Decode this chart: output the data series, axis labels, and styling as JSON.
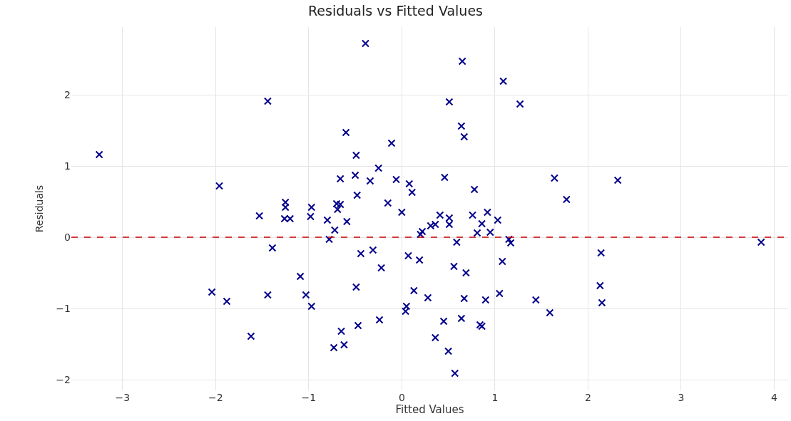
{
  "chart_data": {
    "type": "scatter",
    "title": "Residuals vs Fitted Values",
    "xlabel": "Fitted Values",
    "ylabel": "Residuals",
    "x": [
      -3.25,
      -1.44,
      -1.96,
      -1.53,
      -1.25,
      -1.25,
      -1.26,
      -1.2,
      -0.98,
      -0.97,
      -1.39,
      -1.09,
      -2.04,
      -1.88,
      -1.44,
      -1.03,
      -0.97,
      -1.62,
      -0.39,
      0.65,
      0.51,
      0.64,
      0.67,
      -0.6,
      -0.11,
      -0.49,
      -0.25,
      -0.66,
      -0.5,
      -0.34,
      -0.06,
      0.08,
      0.11,
      0.46,
      -0.48,
      -0.15,
      -0.7,
      -0.66,
      -0.69,
      -0.8,
      -0.59,
      -0.72,
      -0.78,
      0.0,
      0.41,
      0.36,
      0.31,
      0.51,
      0.51,
      0.22,
      0.2,
      0.59,
      -0.44,
      -0.31,
      0.07,
      0.19,
      -0.22,
      0.56,
      0.69,
      -0.49,
      0.13,
      0.28,
      0.67,
      0.05,
      0.04,
      -0.24,
      -0.47,
      -0.65,
      0.45,
      0.64,
      0.36,
      -0.73,
      -0.62,
      0.5,
      0.57,
      1.09,
      1.27,
      1.64,
      2.32,
      1.77,
      0.78,
      0.76,
      0.92,
      0.86,
      1.03,
      0.81,
      0.95,
      1.15,
      1.17,
      3.86,
      2.14,
      1.08,
      2.13,
      2.15,
      0.9,
      1.05,
      1.44,
      1.59,
      0.84,
      0.86
    ],
    "values": [
      1.16,
      1.91,
      0.72,
      0.3,
      0.49,
      0.42,
      0.26,
      0.26,
      0.29,
      0.42,
      -0.15,
      -0.55,
      -0.77,
      -0.9,
      -0.81,
      -0.81,
      -0.97,
      -1.39,
      2.72,
      2.47,
      1.9,
      1.56,
      1.41,
      1.47,
      1.32,
      1.15,
      0.97,
      0.82,
      0.87,
      0.79,
      0.81,
      0.75,
      0.63,
      0.84,
      0.59,
      0.48,
      0.47,
      0.46,
      0.39,
      0.24,
      0.22,
      0.1,
      -0.03,
      0.35,
      0.31,
      0.18,
      0.16,
      0.27,
      0.18,
      0.08,
      0.04,
      -0.07,
      -0.23,
      -0.18,
      -0.26,
      -0.32,
      -0.43,
      -0.41,
      -0.5,
      -0.7,
      -0.75,
      -0.85,
      -0.86,
      -0.97,
      -1.04,
      -1.16,
      -1.24,
      -1.32,
      -1.18,
      -1.14,
      -1.41,
      -1.55,
      -1.51,
      -1.6,
      -1.91,
      2.19,
      1.87,
      0.83,
      0.8,
      0.53,
      0.67,
      0.31,
      0.35,
      0.19,
      0.24,
      0.06,
      0.07,
      -0.03,
      -0.08,
      -0.07,
      -0.22,
      -0.34,
      -0.68,
      -0.92,
      -0.88,
      -0.79,
      -0.88,
      -1.06,
      -1.23,
      -1.25
    ],
    "color": "#00008b",
    "marker": "cross",
    "xlim": [
      -3.55,
      4.15
    ],
    "ylim": [
      -2.15,
      2.95
    ],
    "xticks": [
      -3,
      -2,
      -1,
      0,
      1,
      2,
      3,
      4
    ],
    "yticks": [
      -2,
      -1,
      0,
      1,
      2
    ],
    "ref_lines": [
      {
        "axis": "y",
        "value": 0,
        "color": "#cc0000",
        "line_style": "dashed"
      }
    ],
    "grid": true
  }
}
